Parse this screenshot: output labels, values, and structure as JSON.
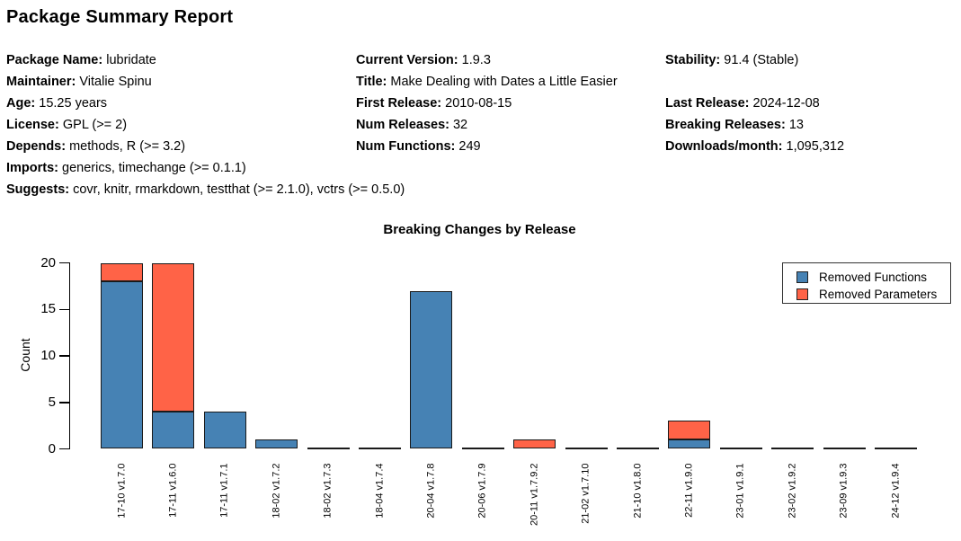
{
  "report": {
    "title": "Package Summary Report"
  },
  "info": {
    "columns": [
      {
        "lines": [
          {
            "label": "Package Name:",
            "value": "lubridate"
          },
          {
            "label": "Maintainer:",
            "value": "Vitalie Spinu"
          },
          {
            "label": "Age:",
            "value": "15.25 years"
          },
          {
            "label": "License:",
            "value": "GPL (>= 2)"
          },
          {
            "label": "Depends:",
            "value": "methods, R (>= 3.2)"
          },
          {
            "label": "Imports:",
            "value": "generics, timechange (>= 0.1.1)"
          },
          {
            "label": "Suggests:",
            "value": "covr, knitr, rmarkdown, testthat (>= 2.1.0), vctrs (>= 0.5.0)"
          }
        ]
      },
      {
        "lines": [
          {
            "label": "Current Version:",
            "value": "1.9.3"
          },
          {
            "label": "Title:",
            "value": "Make Dealing with Dates a Little Easier"
          },
          {
            "label": "First Release:",
            "value": "2010-08-15"
          },
          {
            "label": "Num Releases:",
            "value": "32"
          },
          {
            "label": "Num Functions:",
            "value": "249"
          }
        ]
      },
      {
        "lines": [
          {
            "label": "Stability:",
            "value": "91.4 (Stable)"
          },
          {
            "label": "",
            "value": ""
          },
          {
            "label": "Last Release:",
            "value": "2024-12-08"
          },
          {
            "label": "Breaking Releases:",
            "value": "13"
          },
          {
            "label": "Downloads/month:",
            "value": "1,095,312"
          }
        ]
      }
    ]
  },
  "chart_data": {
    "type": "bar",
    "stacked": true,
    "title": "Breaking Changes by Release",
    "xlabel": "",
    "ylabel": "Count",
    "categories": [
      "17-10 v1.7.0",
      "17-11 v1.6.0",
      "17-11 v1.7.1",
      "18-02 v1.7.2",
      "18-02 v1.7.3",
      "18-04 v1.7.4",
      "20-04 v1.7.8",
      "20-06 v1.7.9",
      "20-11 v1.7.9.2",
      "21-02 v1.7.10",
      "21-10 v1.8.0",
      "22-11 v1.9.0",
      "23-01 v1.9.1",
      "23-02 v1.9.2",
      "23-09 v1.9.3",
      "24-12 v1.9.4"
    ],
    "series": [
      {
        "name": "Removed Functions",
        "color": "#4682B4",
        "values": [
          18,
          4,
          4,
          1,
          0,
          0,
          17,
          0,
          0,
          0,
          0,
          1,
          0,
          0,
          0,
          0
        ]
      },
      {
        "name": "Removed Parameters",
        "color": "#FF6347",
        "values": [
          2,
          16,
          0,
          0,
          0,
          0,
          0,
          0,
          1,
          0,
          0,
          2,
          0,
          0,
          0,
          0
        ]
      }
    ],
    "ylim": [
      0,
      20
    ],
    "yticks": [
      0,
      5,
      10,
      15,
      20
    ],
    "grid": false,
    "legend_position": "upper-right"
  }
}
